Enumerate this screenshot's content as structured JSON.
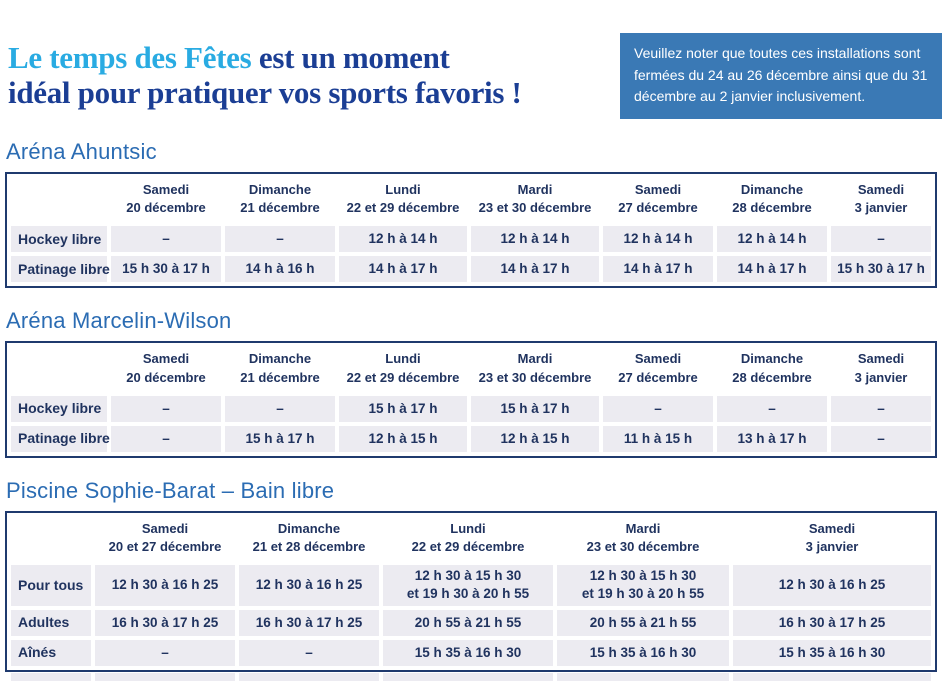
{
  "header": {
    "title": {
      "highlight": "Le temps des Fêtes",
      "rest": " est un moment",
      "line2": "idéal pour pratiquer vos sports favoris !"
    },
    "notice": "Veuillez noter que toutes ces installations sont fermées du 24 au 26 décembre ainsi que du 31 décembre au 2 janvier inclusivement."
  },
  "colors": {
    "title_highlight": "#29ABE2",
    "title_dark": "#1B3E94",
    "notice_bg": "#3A79B5",
    "section_heading": "#2B6CB3",
    "table_border": "#1F3A6E",
    "cell_bg": "#ECEBF1",
    "cell_text": "#20335F"
  },
  "sections": [
    {
      "heading": "Aréna Ahuntsic",
      "columns": [
        "Samedi\n20 décembre",
        "Dimanche\n21 décembre",
        "Lundi\n22 et 29 décembre",
        "Mardi\n23 et 30 décembre",
        "Samedi\n27 décembre",
        "Dimanche\n28 décembre",
        "Samedi\n3 janvier"
      ],
      "rows": [
        {
          "label": "Hockey libre",
          "cells": [
            "–",
            "–",
            "12 h à 14 h",
            "12 h à 14 h",
            "12 h à 14 h",
            "12 h à 14 h",
            "–"
          ]
        },
        {
          "label": "Patinage libre",
          "cells": [
            "15 h 30 à 17 h",
            "14 h à 16 h",
            "14 h à 17 h",
            "14 h à 17 h",
            "14 h à 17 h",
            "14 h à 17 h",
            "15 h 30 à 17 h"
          ]
        }
      ]
    },
    {
      "heading": "Aréna Marcelin-Wilson",
      "columns": [
        "Samedi\n20 décembre",
        "Dimanche\n21 décembre",
        "Lundi\n22 et 29 décembre",
        "Mardi\n23 et 30 décembre",
        "Samedi\n27 décembre",
        "Dimanche\n28 décembre",
        "Samedi\n3 janvier"
      ],
      "rows": [
        {
          "label": "Hockey libre",
          "cells": [
            "–",
            "–",
            "15 h à 17 h",
            "15 h à 17 h",
            "–",
            "–",
            "–"
          ]
        },
        {
          "label": "Patinage libre",
          "cells": [
            "–",
            "15 h à 17 h",
            "12 h à 15 h",
            "12 h à 15 h",
            "11 h à 15 h",
            "13 h à 17 h",
            "–"
          ]
        }
      ]
    },
    {
      "heading": "Piscine Sophie-Barat – Bain libre",
      "columns": [
        "Samedi\n20 et 27 décembre",
        "Dimanche\n21 et 28 décembre",
        "Lundi\n22 et 29 décembre",
        "Mardi\n23 et 30 décembre",
        "Samedi\n3 janvier"
      ],
      "rows": [
        {
          "label": "Pour tous",
          "cells": [
            "12 h 30 à 16 h 25",
            "12 h 30 à 16 h 25",
            "12 h 30 à 15 h 30\net 19 h 30 à 20 h 55",
            "12 h 30 à 15 h 30\net 19 h 30 à 20 h 55",
            "12 h 30 à 16 h 25"
          ]
        },
        {
          "label": "Adultes",
          "cells": [
            "16 h 30 à 17 h 25",
            "16 h 30 à 17 h 25",
            "20 h 55 à 21 h 55",
            "20 h 55 à 21 h 55",
            "16 h 30 à 17 h 25"
          ]
        },
        {
          "label": "Aînés",
          "cells": [
            "–",
            "–",
            "15 h 35 à 16 h 30",
            "15 h 35 à 16 h 30",
            "15 h 35 à 16 h 30"
          ]
        }
      ]
    }
  ]
}
